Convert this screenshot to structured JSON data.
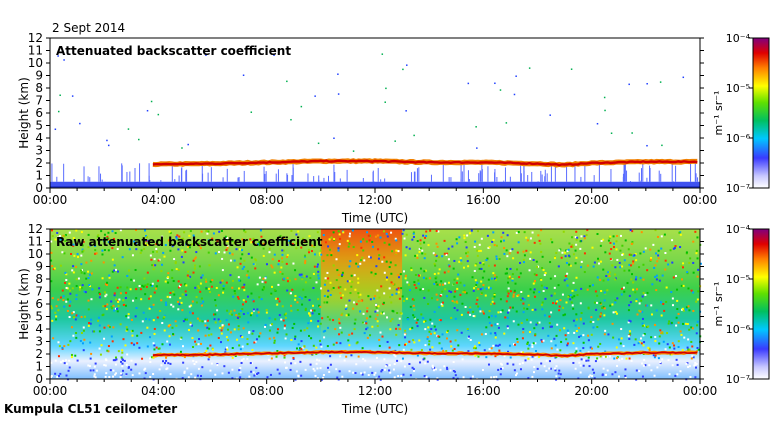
{
  "date_label": "2 Sept 2014",
  "footer_label": "Kumpula CL51 ceilometer",
  "chart_data": [
    {
      "type": "heatmap",
      "title": "Attenuated backscatter coefficient",
      "xlabel": "Time (UTC)",
      "ylabel": "Height (km)",
      "x_ticks": [
        "00:00",
        "04:00",
        "08:00",
        "12:00",
        "16:00",
        "20:00",
        "00:00"
      ],
      "y_ticks": [
        "0",
        "1",
        "2",
        "3",
        "4",
        "5",
        "6",
        "7",
        "8",
        "9",
        "10",
        "11",
        "12"
      ],
      "xlim_hours": [
        0,
        24
      ],
      "ylim_km": [
        0,
        12
      ],
      "colorbar": {
        "ticks": [
          "10⁻⁴",
          "10⁻⁵",
          "10⁻⁶",
          "10⁻⁷"
        ],
        "label": "m⁻¹ sr⁻¹",
        "range": [
          1e-07,
          0.0001
        ],
        "scale": "log"
      },
      "features": {
        "cloud_layer": [
          {
            "t": 3.8,
            "h": 1.9
          },
          {
            "t": 6,
            "h": 1.95
          },
          {
            "t": 8,
            "h": 2.05
          },
          {
            "t": 10,
            "h": 2.15
          },
          {
            "t": 12,
            "h": 2.15
          },
          {
            "t": 14,
            "h": 2.05
          },
          {
            "t": 16,
            "h": 2.05
          },
          {
            "t": 18,
            "h": 1.95
          },
          {
            "t": 19,
            "h": 1.85
          },
          {
            "t": 20,
            "h": 2.0
          },
          {
            "t": 22,
            "h": 2.1
          },
          {
            "t": 24,
            "h": 2.1
          }
        ],
        "boundary_layer_top_km": 0.5
      }
    },
    {
      "type": "heatmap",
      "title": "Raw attenuated backscatter coefficient",
      "xlabel": "Time (UTC)",
      "ylabel": "Height (km)",
      "x_ticks": [
        "00:00",
        "04:00",
        "08:00",
        "12:00",
        "16:00",
        "20:00",
        "00:00"
      ],
      "y_ticks": [
        "0",
        "1",
        "2",
        "3",
        "4",
        "5",
        "6",
        "7",
        "8",
        "9",
        "10",
        "11",
        "12"
      ],
      "xlim_hours": [
        0,
        24
      ],
      "ylim_km": [
        0,
        12
      ],
      "colorbar": {
        "ticks": [
          "10⁻⁴",
          "10⁻⁵",
          "10⁻⁶",
          "10⁻⁷"
        ],
        "label": "m⁻¹ sr⁻¹",
        "range": [
          1e-07,
          0.0001
        ],
        "scale": "log"
      },
      "features": {
        "cloud_layer": [
          {
            "t": 3.8,
            "h": 1.9
          },
          {
            "t": 6,
            "h": 1.95
          },
          {
            "t": 8,
            "h": 2.05
          },
          {
            "t": 10,
            "h": 2.15
          },
          {
            "t": 12,
            "h": 2.15
          },
          {
            "t": 14,
            "h": 2.05
          },
          {
            "t": 16,
            "h": 2.05
          },
          {
            "t": 18,
            "h": 1.95
          },
          {
            "t": 19,
            "h": 1.85
          },
          {
            "t": 20,
            "h": 2.0
          },
          {
            "t": 22,
            "h": 2.1
          },
          {
            "t": 24,
            "h": 2.1
          }
        ],
        "noise_peak_hours": [
          10,
          13
        ]
      }
    }
  ]
}
